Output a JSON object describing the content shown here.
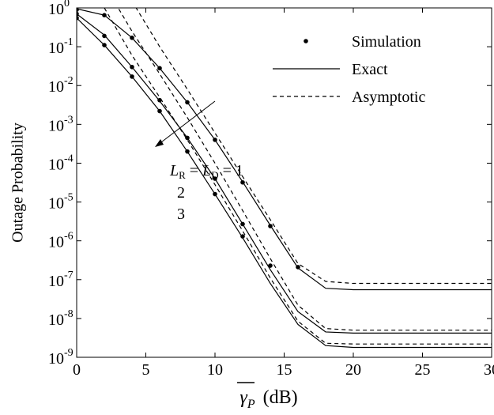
{
  "chart_data": {
    "type": "line",
    "log_y": true,
    "grid": false,
    "xlabel": {
      "symbol": "γ",
      "sub": "P",
      "unit": "(dB)"
    },
    "ylabel": "Outage Probability",
    "xlim": [
      0,
      30
    ],
    "xticks": [
      0,
      5,
      10,
      15,
      20,
      25,
      30
    ],
    "ylim": [
      1e-09,
      1
    ],
    "yticks": [
      {
        "value": 1e-09,
        "label": "10",
        "exponent": "-9"
      },
      {
        "value": 1e-08,
        "label": "10",
        "exponent": "-8"
      },
      {
        "value": 1e-07,
        "label": "10",
        "exponent": "-7"
      },
      {
        "value": 1e-06,
        "label": "10",
        "exponent": "-6"
      },
      {
        "value": 1e-05,
        "label": "10",
        "exponent": "-5"
      },
      {
        "value": 0.0001,
        "label": "10",
        "exponent": "-4"
      },
      {
        "value": 0.001,
        "label": "10",
        "exponent": "-3"
      },
      {
        "value": 0.01,
        "label": "10",
        "exponent": "-2"
      },
      {
        "value": 0.1,
        "label": "10",
        "exponent": "-1"
      },
      {
        "value": 1,
        "label": "10",
        "exponent": "0"
      }
    ],
    "x": [
      0,
      2,
      4,
      6,
      8,
      10,
      12,
      14,
      16,
      18,
      20,
      22,
      24,
      26,
      28,
      30
    ],
    "series": [
      {
        "style": "solid",
        "color": "#000000",
        "values": [
          0.95,
          0.65,
          0.17,
          0.028,
          0.0037,
          0.0004,
          3.3e-05,
          2.5e-06,
          2e-07,
          6e-08,
          5.5e-08,
          5.5e-08,
          5.5e-08,
          5.5e-08,
          5.5e-08,
          5.5e-08
        ]
      },
      {
        "style": "solid",
        "color": "#000000",
        "values": [
          0.7,
          0.2,
          0.03,
          0.004,
          0.00045,
          4e-05,
          2.7e-06,
          1.8e-07,
          1.5e-08,
          4.5e-09,
          4.2e-09,
          4.2e-09,
          4.2e-09,
          4.2e-09,
          4.2e-09,
          4.2e-09
        ]
      },
      {
        "style": "solid",
        "color": "#000000",
        "values": [
          0.55,
          0.11,
          0.017,
          0.0022,
          0.0002,
          1.6e-05,
          1.2e-06,
          8e-08,
          7e-09,
          2e-09,
          1.8e-09,
          1.8e-09,
          1.8e-09,
          1.8e-09,
          1.8e-09,
          1.8e-09
        ]
      },
      {
        "style": "dashed",
        "color": "#000000",
        "values": [
          null,
          null,
          1.5,
          0.1,
          0.008,
          0.0006,
          4.5e-05,
          3.5e-06,
          2.6e-07,
          9e-08,
          8e-08,
          8e-08,
          8e-08,
          8e-08,
          8e-08,
          8e-08
        ]
      },
      {
        "style": "dashed",
        "color": "#000000",
        "values": [
          null,
          4,
          0.25,
          0.02,
          0.0015,
          0.0001,
          6e-06,
          3.5e-07,
          2.2e-08,
          5.5e-09,
          5e-09,
          5e-09,
          5e-09,
          5e-09,
          5e-09,
          5e-09
        ]
      },
      {
        "style": "dashed",
        "color": "#000000",
        "values": [
          null,
          1.0,
          0.06,
          0.005,
          0.0004,
          2.8e-05,
          1.8e-06,
          1.1e-07,
          8.5e-09,
          2.3e-09,
          2.2e-09,
          2.2e-09,
          2.2e-09,
          2.2e-09,
          2.2e-09,
          2.2e-09
        ]
      },
      {
        "style": "dot",
        "color": "#000000",
        "values": [
          0.9,
          0.65,
          0.17,
          0.028,
          0.0037,
          0.0004,
          3.2e-05,
          2.4e-06,
          2.1e-07,
          null,
          null,
          null,
          null,
          null,
          null,
          null
        ]
      },
      {
        "style": "dot",
        "color": "#000000",
        "values": [
          0.7,
          0.19,
          0.03,
          0.0042,
          0.00045,
          4e-05,
          2.7e-06,
          2.3e-07,
          null,
          null,
          null,
          null,
          null,
          null,
          null,
          null
        ]
      },
      {
        "style": "dot",
        "color": "#000000",
        "values": [
          0.55,
          0.11,
          0.017,
          0.0022,
          0.0002,
          1.6e-05,
          1.3e-06,
          null,
          null,
          null,
          null,
          null,
          null,
          null,
          null,
          null
        ]
      }
    ],
    "legend": [
      {
        "style": "dot",
        "label": "Simulation"
      },
      {
        "style": "solid",
        "label": "Exact"
      },
      {
        "style": "dashed",
        "label": "Asymptotic"
      }
    ],
    "annotation": {
      "var": "L",
      "sub1": "R",
      "eq": "=",
      "sub2": "D",
      "values": [
        "1",
        "2",
        "3"
      ]
    }
  }
}
